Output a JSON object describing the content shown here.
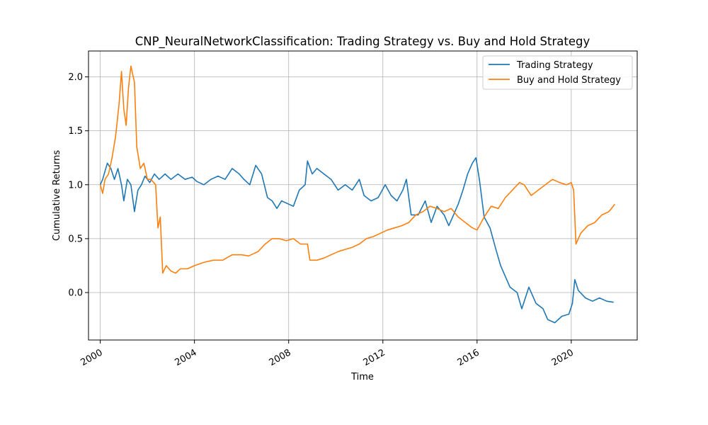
{
  "chart_data": {
    "type": "line",
    "title": "CNP_NeuralNetworkClassification: Trading Strategy vs. Buy and Hold Strategy",
    "xlabel": "Time",
    "ylabel": "Cumulative Returns",
    "xlim": [
      1999.5,
      2022.8
    ],
    "ylim": [
      -0.44,
      2.24
    ],
    "x_ticks": [
      2000,
      2004,
      2008,
      2012,
      2016,
      2020
    ],
    "x_tick_labels": [
      "2000",
      "2004",
      "2008",
      "2012",
      "2016",
      "2020"
    ],
    "y_ticks": [
      0.0,
      0.5,
      1.0,
      1.5,
      2.0
    ],
    "y_tick_labels": [
      "0.0",
      "0.5",
      "1.0",
      "1.5",
      "2.0"
    ],
    "grid": true,
    "legend_position": "top-right",
    "series": [
      {
        "name": "Trading Strategy",
        "color": "#1f77b4",
        "points": [
          [
            2000.0,
            1.0
          ],
          [
            2000.1,
            1.05
          ],
          [
            2000.3,
            1.2
          ],
          [
            2000.45,
            1.15
          ],
          [
            2000.6,
            1.05
          ],
          [
            2000.75,
            1.15
          ],
          [
            2000.9,
            1.0
          ],
          [
            2001.0,
            0.85
          ],
          [
            2001.15,
            1.05
          ],
          [
            2001.3,
            1.0
          ],
          [
            2001.45,
            0.75
          ],
          [
            2001.6,
            0.95
          ],
          [
            2001.75,
            1.0
          ],
          [
            2001.9,
            1.08
          ],
          [
            2002.1,
            1.02
          ],
          [
            2002.3,
            1.1
          ],
          [
            2002.5,
            1.05
          ],
          [
            2002.75,
            1.1
          ],
          [
            2003.0,
            1.05
          ],
          [
            2003.3,
            1.1
          ],
          [
            2003.6,
            1.05
          ],
          [
            2003.9,
            1.07
          ],
          [
            2004.1,
            1.03
          ],
          [
            2004.4,
            1.0
          ],
          [
            2004.7,
            1.05
          ],
          [
            2005.0,
            1.08
          ],
          [
            2005.3,
            1.05
          ],
          [
            2005.6,
            1.15
          ],
          [
            2005.9,
            1.1
          ],
          [
            2006.1,
            1.05
          ],
          [
            2006.35,
            1.0
          ],
          [
            2006.6,
            1.18
          ],
          [
            2006.85,
            1.1
          ],
          [
            2007.1,
            0.88
          ],
          [
            2007.3,
            0.85
          ],
          [
            2007.5,
            0.78
          ],
          [
            2007.7,
            0.85
          ],
          [
            2008.0,
            0.82
          ],
          [
            2008.2,
            0.8
          ],
          [
            2008.45,
            0.95
          ],
          [
            2008.7,
            1.0
          ],
          [
            2008.8,
            1.22
          ],
          [
            2009.0,
            1.1
          ],
          [
            2009.2,
            1.15
          ],
          [
            2009.5,
            1.1
          ],
          [
            2009.8,
            1.05
          ],
          [
            2010.1,
            0.95
          ],
          [
            2010.4,
            1.0
          ],
          [
            2010.7,
            0.95
          ],
          [
            2011.0,
            1.05
          ],
          [
            2011.2,
            0.9
          ],
          [
            2011.5,
            0.85
          ],
          [
            2011.8,
            0.88
          ],
          [
            2012.1,
            1.0
          ],
          [
            2012.35,
            0.9
          ],
          [
            2012.6,
            0.85
          ],
          [
            2012.85,
            0.95
          ],
          [
            2013.0,
            1.05
          ],
          [
            2013.2,
            0.72
          ],
          [
            2013.5,
            0.72
          ],
          [
            2013.8,
            0.85
          ],
          [
            2014.05,
            0.65
          ],
          [
            2014.3,
            0.8
          ],
          [
            2014.6,
            0.72
          ],
          [
            2014.8,
            0.62
          ],
          [
            2015.0,
            0.72
          ],
          [
            2015.2,
            0.82
          ],
          [
            2015.4,
            0.95
          ],
          [
            2015.6,
            1.1
          ],
          [
            2015.8,
            1.2
          ],
          [
            2015.95,
            1.25
          ],
          [
            2016.1,
            1.05
          ],
          [
            2016.3,
            0.7
          ],
          [
            2016.55,
            0.6
          ],
          [
            2016.8,
            0.4
          ],
          [
            2017.0,
            0.25
          ],
          [
            2017.2,
            0.15
          ],
          [
            2017.4,
            0.05
          ],
          [
            2017.7,
            0.0
          ],
          [
            2017.9,
            -0.15
          ],
          [
            2018.2,
            0.05
          ],
          [
            2018.5,
            -0.1
          ],
          [
            2018.8,
            -0.15
          ],
          [
            2019.0,
            -0.25
          ],
          [
            2019.3,
            -0.28
          ],
          [
            2019.6,
            -0.22
          ],
          [
            2019.9,
            -0.2
          ],
          [
            2020.05,
            -0.1
          ],
          [
            2020.15,
            0.12
          ],
          [
            2020.3,
            0.02
          ],
          [
            2020.6,
            -0.05
          ],
          [
            2020.9,
            -0.08
          ],
          [
            2021.2,
            -0.05
          ],
          [
            2021.5,
            -0.08
          ],
          [
            2021.8,
            -0.09
          ]
        ]
      },
      {
        "name": "Buy and Hold Strategy",
        "color": "#ff7f0e",
        "points": [
          [
            2000.0,
            1.0
          ],
          [
            2000.1,
            0.92
          ],
          [
            2000.2,
            1.05
          ],
          [
            2000.35,
            1.1
          ],
          [
            2000.5,
            1.25
          ],
          [
            2000.65,
            1.45
          ],
          [
            2000.8,
            1.75
          ],
          [
            2000.9,
            2.05
          ],
          [
            2001.0,
            1.7
          ],
          [
            2001.1,
            1.55
          ],
          [
            2001.2,
            1.9
          ],
          [
            2001.3,
            2.1
          ],
          [
            2001.45,
            1.95
          ],
          [
            2001.55,
            1.35
          ],
          [
            2001.7,
            1.15
          ],
          [
            2001.85,
            1.2
          ],
          [
            2002.0,
            1.05
          ],
          [
            2002.15,
            1.05
          ],
          [
            2002.35,
            1.0
          ],
          [
            2002.45,
            0.6
          ],
          [
            2002.55,
            0.7
          ],
          [
            2002.65,
            0.18
          ],
          [
            2002.8,
            0.25
          ],
          [
            2003.0,
            0.2
          ],
          [
            2003.2,
            0.18
          ],
          [
            2003.4,
            0.22
          ],
          [
            2003.7,
            0.22
          ],
          [
            2004.0,
            0.25
          ],
          [
            2004.4,
            0.28
          ],
          [
            2004.8,
            0.3
          ],
          [
            2005.2,
            0.3
          ],
          [
            2005.6,
            0.35
          ],
          [
            2006.0,
            0.35
          ],
          [
            2006.3,
            0.34
          ],
          [
            2006.7,
            0.38
          ],
          [
            2007.0,
            0.45
          ],
          [
            2007.3,
            0.5
          ],
          [
            2007.6,
            0.5
          ],
          [
            2007.9,
            0.48
          ],
          [
            2008.2,
            0.5
          ],
          [
            2008.5,
            0.45
          ],
          [
            2008.8,
            0.45
          ],
          [
            2008.9,
            0.3
          ],
          [
            2009.2,
            0.3
          ],
          [
            2009.5,
            0.32
          ],
          [
            2009.8,
            0.35
          ],
          [
            2010.1,
            0.38
          ],
          [
            2010.4,
            0.4
          ],
          [
            2010.7,
            0.42
          ],
          [
            2011.0,
            0.45
          ],
          [
            2011.3,
            0.5
          ],
          [
            2011.6,
            0.52
          ],
          [
            2011.9,
            0.55
          ],
          [
            2012.2,
            0.58
          ],
          [
            2012.5,
            0.6
          ],
          [
            2012.8,
            0.62
          ],
          [
            2013.1,
            0.65
          ],
          [
            2013.4,
            0.72
          ],
          [
            2013.7,
            0.75
          ],
          [
            2014.0,
            0.8
          ],
          [
            2014.3,
            0.78
          ],
          [
            2014.6,
            0.75
          ],
          [
            2014.9,
            0.78
          ],
          [
            2015.2,
            0.7
          ],
          [
            2015.5,
            0.65
          ],
          [
            2015.8,
            0.6
          ],
          [
            2016.0,
            0.58
          ],
          [
            2016.3,
            0.7
          ],
          [
            2016.6,
            0.8
          ],
          [
            2016.9,
            0.78
          ],
          [
            2017.2,
            0.88
          ],
          [
            2017.5,
            0.95
          ],
          [
            2017.8,
            1.02
          ],
          [
            2018.0,
            1.0
          ],
          [
            2018.3,
            0.9
          ],
          [
            2018.6,
            0.95
          ],
          [
            2018.9,
            1.0
          ],
          [
            2019.2,
            1.05
          ],
          [
            2019.5,
            1.02
          ],
          [
            2019.8,
            1.0
          ],
          [
            2020.0,
            1.02
          ],
          [
            2020.1,
            0.95
          ],
          [
            2020.2,
            0.45
          ],
          [
            2020.4,
            0.55
          ],
          [
            2020.7,
            0.62
          ],
          [
            2021.0,
            0.65
          ],
          [
            2021.3,
            0.72
          ],
          [
            2021.6,
            0.75
          ],
          [
            2021.85,
            0.82
          ]
        ]
      }
    ]
  }
}
